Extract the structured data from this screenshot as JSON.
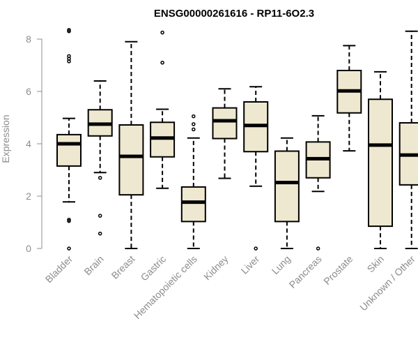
{
  "chart_data": {
    "type": "boxplot",
    "title": "ENSG00000261616 - RP11-6O2.3",
    "xlabel": "",
    "ylabel": "Expression",
    "ylim": [
      0,
      8.4
    ],
    "yticks": [
      0,
      2,
      4,
      6,
      8
    ],
    "grid": false,
    "legend": "none",
    "colors": {
      "box_fill": "#efe8d0",
      "box_stroke": "#000000",
      "median": "#000000",
      "axis": "#8c8c8c"
    },
    "categories": [
      "Bladder",
      "Brain",
      "Breast",
      "Gastric",
      "Hematopoietic cells",
      "Kidney",
      "Liver",
      "Lung",
      "Pancreas",
      "Prostate",
      "Skin",
      "Unknown / Other"
    ],
    "boxes": [
      {
        "q1": 3.15,
        "median": 4.0,
        "q3": 4.35,
        "whisker_low": 1.78,
        "whisker_high": 4.97,
        "outliers": [
          0.0,
          1.05,
          1.1,
          7.15,
          7.25,
          7.35,
          8.3,
          8.35
        ]
      },
      {
        "q1": 4.3,
        "median": 4.75,
        "q3": 5.3,
        "whisker_low": 2.9,
        "whisker_high": 6.4,
        "outliers": [
          0.57,
          1.25,
          2.7
        ]
      },
      {
        "q1": 2.05,
        "median": 3.52,
        "q3": 4.72,
        "whisker_low": 0.0,
        "whisker_high": 7.9,
        "outliers": []
      },
      {
        "q1": 3.5,
        "median": 4.22,
        "q3": 4.82,
        "whisker_low": 2.3,
        "whisker_high": 5.32,
        "outliers": [
          7.1,
          8.25
        ]
      },
      {
        "q1": 1.03,
        "median": 1.77,
        "q3": 2.35,
        "whisker_low": 0.0,
        "whisker_high": 4.22,
        "outliers": [
          4.55,
          4.75,
          5.05
        ]
      },
      {
        "q1": 4.2,
        "median": 4.88,
        "q3": 5.37,
        "whisker_low": 2.68,
        "whisker_high": 6.1,
        "outliers": []
      },
      {
        "q1": 3.7,
        "median": 4.7,
        "q3": 5.6,
        "whisker_low": 2.38,
        "whisker_high": 6.18,
        "outliers": [
          0.0
        ]
      },
      {
        "q1": 1.03,
        "median": 2.52,
        "q3": 3.72,
        "whisker_low": 0.0,
        "whisker_high": 4.22,
        "outliers": []
      },
      {
        "q1": 2.7,
        "median": 3.43,
        "q3": 4.07,
        "whisker_low": 2.18,
        "whisker_high": 5.07,
        "outliers": [
          0.0
        ]
      },
      {
        "q1": 5.18,
        "median": 6.02,
        "q3": 6.8,
        "whisker_low": 3.73,
        "whisker_high": 7.75,
        "outliers": []
      },
      {
        "q1": 0.85,
        "median": 3.95,
        "q3": 5.7,
        "whisker_low": 0.0,
        "whisker_high": 6.75,
        "outliers": []
      },
      {
        "q1": 2.43,
        "median": 3.57,
        "q3": 4.8,
        "whisker_low": 0.0,
        "whisker_high": 8.3,
        "outliers": []
      }
    ]
  }
}
